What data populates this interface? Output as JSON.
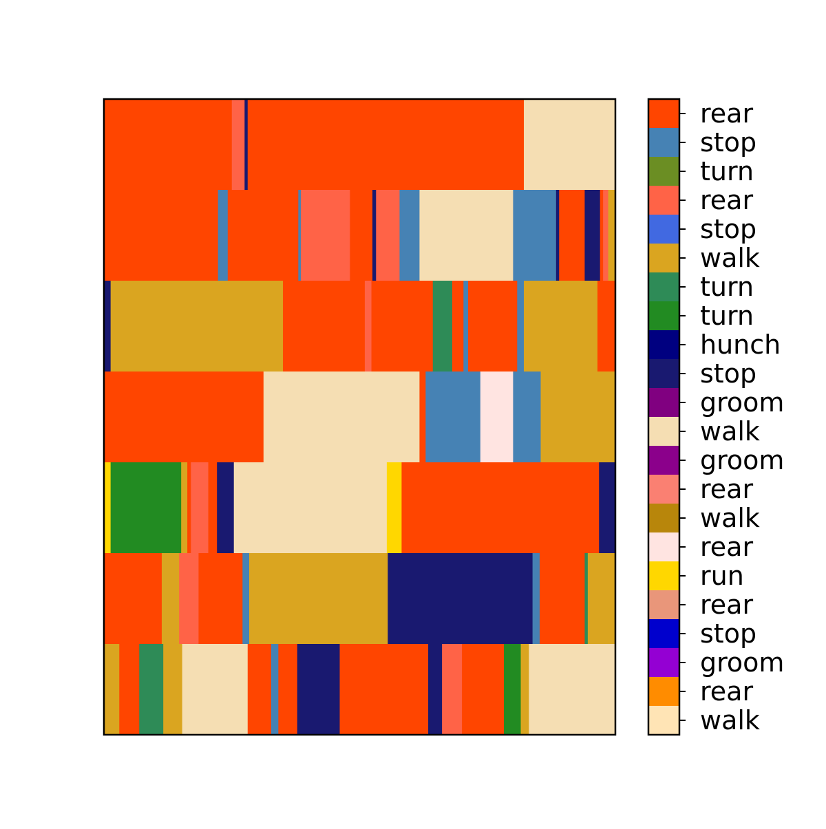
{
  "chart_data": {
    "type": "heatmap",
    "title": "",
    "xlabel": "",
    "ylabel": "",
    "xlim": [
      0,
      100
    ],
    "colorbar": {
      "labels": [
        "walk",
        "rear",
        "groom",
        "stop",
        "rear",
        "run",
        "rear",
        "walk",
        "rear",
        "groom",
        "walk",
        "groom",
        "stop",
        "hunch",
        "turn",
        "turn",
        "walk",
        "stop",
        "rear",
        "turn",
        "stop",
        "rear"
      ],
      "colors": [
        "#FFE4B5",
        "#FF8C00",
        "#9400D3",
        "#0000CD",
        "#E9967A",
        "#FFD700",
        "#FFE4E1",
        "#B8860B",
        "#FA8072",
        "#8B008B",
        "#F5DEB3",
        "#800080",
        "#191970",
        "#000080",
        "#228B22",
        "#2E8B57",
        "#DAA520",
        "#4169E1",
        "#FF6347",
        "#6B8E23",
        "#4682B4",
        "#FF4500"
      ]
    },
    "rows": [
      {
        "segments": [
          {
            "end": 25.0,
            "code": 21
          },
          {
            "end": 27.5,
            "code": 18
          },
          {
            "end": 28.1,
            "code": 12
          },
          {
            "end": 82.1,
            "code": 21
          },
          {
            "end": 100,
            "code": 10
          }
        ]
      },
      {
        "segments": [
          {
            "end": 22.3,
            "code": 21
          },
          {
            "end": 24.2,
            "code": 20
          },
          {
            "end": 38.0,
            "code": 21
          },
          {
            "end": 38.5,
            "code": 20
          },
          {
            "end": 48.1,
            "code": 18
          },
          {
            "end": 52.5,
            "code": 21
          },
          {
            "end": 53.2,
            "code": 12
          },
          {
            "end": 57.8,
            "code": 18
          },
          {
            "end": 61.7,
            "code": 20
          },
          {
            "end": 80.0,
            "code": 10
          },
          {
            "end": 88.4,
            "code": 20
          },
          {
            "end": 89.0,
            "code": 12
          },
          {
            "end": 94.0,
            "code": 21
          },
          {
            "end": 97.0,
            "code": 12
          },
          {
            "end": 97.6,
            "code": 21
          },
          {
            "end": 98.6,
            "code": 18
          },
          {
            "end": 100,
            "code": 16
          }
        ]
      },
      {
        "segments": [
          {
            "end": 1.3,
            "code": 12
          },
          {
            "end": 35.0,
            "code": 16
          },
          {
            "end": 51.0,
            "code": 21
          },
          {
            "end": 52.3,
            "code": 18
          },
          {
            "end": 64.3,
            "code": 21
          },
          {
            "end": 68.1,
            "code": 15
          },
          {
            "end": 70.3,
            "code": 21
          },
          {
            "end": 71.2,
            "code": 20
          },
          {
            "end": 80.8,
            "code": 21
          },
          {
            "end": 82.1,
            "code": 20
          },
          {
            "end": 96.5,
            "code": 16
          },
          {
            "end": 100,
            "code": 21
          }
        ]
      },
      {
        "segments": [
          {
            "end": 31.2,
            "code": 21
          },
          {
            "end": 61.7,
            "code": 10
          },
          {
            "end": 62.9,
            "code": 21
          },
          {
            "end": 73.6,
            "code": 20
          },
          {
            "end": 80.0,
            "code": 6
          },
          {
            "end": 85.4,
            "code": 20
          },
          {
            "end": 100,
            "code": 16
          }
        ]
      },
      {
        "segments": [
          {
            "end": 1.3,
            "code": 5
          },
          {
            "end": 15.1,
            "code": 14
          },
          {
            "end": 16.3,
            "code": 16
          },
          {
            "end": 17.0,
            "code": 21
          },
          {
            "end": 20.4,
            "code": 18
          },
          {
            "end": 22.1,
            "code": 21
          },
          {
            "end": 25.4,
            "code": 12
          },
          {
            "end": 55.3,
            "code": 10
          },
          {
            "end": 58.2,
            "code": 5
          },
          {
            "end": 96.8,
            "code": 21
          },
          {
            "end": 100,
            "code": 12
          }
        ]
      },
      {
        "segments": [
          {
            "end": 11.3,
            "code": 21
          },
          {
            "end": 14.7,
            "code": 16
          },
          {
            "end": 18.5,
            "code": 18
          },
          {
            "end": 27.1,
            "code": 21
          },
          {
            "end": 28.4,
            "code": 20
          },
          {
            "end": 55.5,
            "code": 16
          },
          {
            "end": 83.8,
            "code": 12
          },
          {
            "end": 85.2,
            "code": 20
          },
          {
            "end": 94.0,
            "code": 21
          },
          {
            "end": 94.6,
            "code": 15
          },
          {
            "end": 100,
            "code": 16
          }
        ]
      },
      {
        "segments": [
          {
            "end": 3.0,
            "code": 16
          },
          {
            "end": 6.9,
            "code": 21
          },
          {
            "end": 11.6,
            "code": 15
          },
          {
            "end": 15.3,
            "code": 16
          },
          {
            "end": 28.1,
            "code": 10
          },
          {
            "end": 32.7,
            "code": 21
          },
          {
            "end": 34.1,
            "code": 20
          },
          {
            "end": 37.8,
            "code": 21
          },
          {
            "end": 46.1,
            "code": 12
          },
          {
            "end": 63.4,
            "code": 21
          },
          {
            "end": 66.1,
            "code": 12
          },
          {
            "end": 70.0,
            "code": 18
          },
          {
            "end": 78.2,
            "code": 21
          },
          {
            "end": 81.5,
            "code": 14
          },
          {
            "end": 83.1,
            "code": 16
          },
          {
            "end": 100,
            "code": 10
          }
        ]
      }
    ]
  }
}
